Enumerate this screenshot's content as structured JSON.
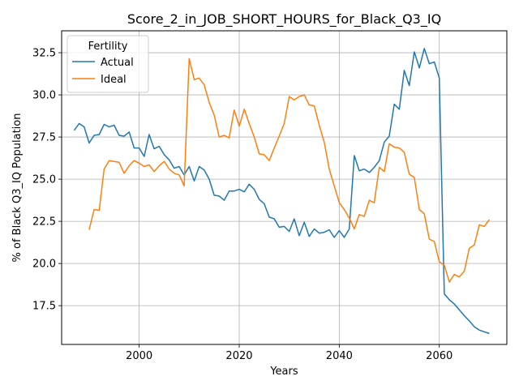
{
  "chart_data": {
    "type": "line",
    "title": "Score_2_in_JOB_SHORT_HOURS_for_Black_Q3_IQ",
    "xlabel": "Years",
    "ylabel": "% of Black Q3_IQ Population",
    "xlim": [
      1984.5,
      2073.5
    ],
    "ylim": [
      15.2,
      33.8
    ],
    "xticks": [
      2000,
      2020,
      2040,
      2060
    ],
    "yticks": [
      17.5,
      20.0,
      22.5,
      25.0,
      27.5,
      30.0,
      32.5
    ],
    "ytick_labels": [
      "17.5",
      "20.0",
      "22.5",
      "25.0",
      "27.5",
      "30.0",
      "32.5"
    ],
    "grid": true,
    "legend": {
      "title": "Fertility",
      "placement": "top-left"
    },
    "series": [
      {
        "name": "Actual",
        "color": "#1f77b4",
        "x": [
          1987,
          1988,
          1989,
          1990,
          1991,
          1992,
          1993,
          1994,
          1995,
          1996,
          1997,
          1998,
          1999,
          2000,
          2001,
          2002,
          2003,
          2004,
          2005,
          2006,
          2007,
          2008,
          2009,
          2010,
          2011,
          2012,
          2013,
          2014,
          2015,
          2016,
          2017,
          2018,
          2019,
          2020,
          2021,
          2022,
          2023,
          2024,
          2025,
          2026,
          2027,
          2028,
          2029,
          2030,
          2031,
          2032,
          2033,
          2034,
          2035,
          2036,
          2037,
          2038,
          2039,
          2040,
          2041,
          2042,
          2043,
          2044,
          2045,
          2046,
          2047,
          2048,
          2049,
          2050,
          2051,
          2052,
          2053,
          2054,
          2055,
          2056,
          2057,
          2058,
          2059,
          2060,
          2061,
          2062,
          2063,
          2064,
          2065,
          2066,
          2067,
          2068,
          2069,
          2070
        ],
        "values": [
          27.9,
          28.3,
          28.1,
          27.15,
          27.6,
          27.65,
          28.25,
          28.1,
          28.2,
          27.6,
          27.55,
          27.8,
          26.85,
          26.85,
          26.35,
          27.65,
          26.8,
          26.95,
          26.45,
          26.15,
          25.65,
          25.75,
          25.25,
          25.75,
          24.9,
          25.75,
          25.55,
          25.0,
          24.05,
          24.0,
          23.75,
          24.3,
          24.3,
          24.4,
          24.25,
          24.7,
          24.4,
          23.8,
          23.55,
          22.75,
          22.65,
          22.15,
          22.2,
          21.9,
          22.65,
          21.65,
          22.45,
          21.6,
          22.05,
          21.8,
          21.85,
          22.0,
          21.55,
          21.95,
          21.55,
          22.05,
          26.4,
          25.5,
          25.6,
          25.4,
          25.7,
          26.1,
          27.2,
          27.55,
          29.45,
          29.15,
          31.45,
          30.55,
          32.55,
          31.6,
          32.75,
          31.85,
          31.95,
          31.0,
          18.2,
          17.85,
          17.6,
          17.25,
          16.9,
          16.6,
          16.25,
          16.05,
          15.95,
          15.85
        ]
      },
      {
        "name": "Ideal",
        "color": "#ff7f0e",
        "x": [
          1990,
          1991,
          1992,
          1993,
          1994,
          1995,
          1996,
          1997,
          1998,
          1999,
          2000,
          2001,
          2002,
          2003,
          2004,
          2005,
          2006,
          2007,
          2008,
          2009,
          2010,
          2011,
          2012,
          2013,
          2014,
          2015,
          2016,
          2017,
          2018,
          2019,
          2020,
          2021,
          2022,
          2023,
          2024,
          2025,
          2026,
          2027,
          2028,
          2029,
          2030,
          2031,
          2032,
          2033,
          2034,
          2035,
          2036,
          2037,
          2038,
          2039,
          2040,
          2041,
          2042,
          2043,
          2044,
          2045,
          2046,
          2047,
          2048,
          2049,
          2050,
          2051,
          2052,
          2053,
          2054,
          2055,
          2056,
          2057,
          2058,
          2059,
          2060,
          2061,
          2062,
          2063,
          2064,
          2065,
          2066,
          2067,
          2068,
          2069,
          2070
        ],
        "values": [
          22.0,
          23.2,
          23.15,
          25.6,
          26.1,
          26.05,
          26.0,
          25.35,
          25.8,
          26.1,
          25.95,
          25.75,
          25.85,
          25.45,
          25.8,
          26.05,
          25.6,
          25.35,
          25.25,
          24.6,
          32.15,
          30.9,
          31.0,
          30.6,
          29.55,
          28.8,
          27.5,
          27.6,
          27.45,
          29.1,
          28.15,
          29.15,
          28.3,
          27.5,
          26.5,
          26.45,
          26.1,
          26.85,
          27.55,
          28.3,
          29.9,
          29.7,
          29.9,
          30.0,
          29.4,
          29.35,
          28.2,
          27.2,
          25.6,
          24.6,
          23.6,
          23.2,
          22.7,
          22.05,
          22.9,
          22.8,
          23.75,
          23.6,
          25.7,
          25.45,
          27.1,
          26.9,
          26.85,
          26.6,
          25.3,
          25.1,
          23.2,
          22.95,
          21.45,
          21.3,
          20.1,
          19.9,
          18.9,
          19.35,
          19.2,
          19.55,
          20.9,
          21.1,
          22.3,
          22.2,
          22.6
        ]
      }
    ]
  }
}
